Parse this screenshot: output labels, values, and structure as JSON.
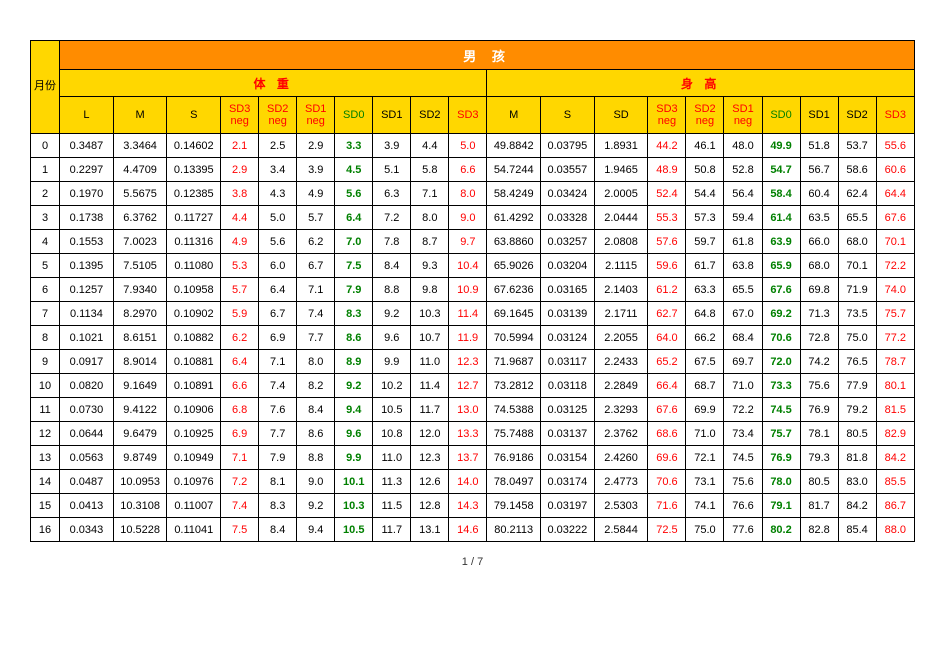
{
  "title": "男 孩",
  "month_header": "月份",
  "groups": [
    "体 重",
    "身 高"
  ],
  "columns_weight": [
    {
      "key": "L",
      "label": "L",
      "cls": "h-black"
    },
    {
      "key": "M",
      "label": "M",
      "cls": "h-black"
    },
    {
      "key": "S",
      "label": "S",
      "cls": "h-black"
    },
    {
      "key": "SD3neg",
      "label": "SD3\nneg",
      "cls": "h-red"
    },
    {
      "key": "SD2neg",
      "label": "SD2\nneg",
      "cls": "h-red"
    },
    {
      "key": "SD1neg",
      "label": "SD1\nneg",
      "cls": "h-red"
    },
    {
      "key": "SD0",
      "label": "SD0",
      "cls": "h-green"
    },
    {
      "key": "SD1",
      "label": "SD1",
      "cls": "h-black"
    },
    {
      "key": "SD2",
      "label": "SD2",
      "cls": "h-black"
    },
    {
      "key": "SD3",
      "label": "SD3",
      "cls": "h-red"
    }
  ],
  "columns_height": [
    {
      "key": "M",
      "label": "M",
      "cls": "h-black"
    },
    {
      "key": "S",
      "label": "S",
      "cls": "h-black"
    },
    {
      "key": "SD",
      "label": "SD",
      "cls": "h-black"
    },
    {
      "key": "SD3neg",
      "label": "SD3\nneg",
      "cls": "h-red"
    },
    {
      "key": "SD2neg",
      "label": "SD2\nneg",
      "cls": "h-red"
    },
    {
      "key": "SD1neg",
      "label": "SD1\nneg",
      "cls": "h-red"
    },
    {
      "key": "SD0",
      "label": "SD0",
      "cls": "h-green"
    },
    {
      "key": "SD1",
      "label": "SD1",
      "cls": "h-black"
    },
    {
      "key": "SD2",
      "label": "SD2",
      "cls": "h-black"
    },
    {
      "key": "SD3",
      "label": "SD3",
      "cls": "h-red"
    }
  ],
  "cell_classes": {
    "weight": [
      "c-black",
      "c-black",
      "c-black",
      "c-red",
      "c-black",
      "c-black",
      "c-green",
      "c-black",
      "c-black",
      "c-red"
    ],
    "height": [
      "c-black",
      "c-black",
      "c-black",
      "c-red",
      "c-black",
      "c-black",
      "c-green",
      "c-black",
      "c-black",
      "c-red"
    ]
  },
  "rows": [
    {
      "m": 0,
      "w": [
        "0.3487",
        "3.3464",
        "0.14602",
        "2.1",
        "2.5",
        "2.9",
        "3.3",
        "3.9",
        "4.4",
        "5.0"
      ],
      "h": [
        "49.8842",
        "0.03795",
        "1.8931",
        "44.2",
        "46.1",
        "48.0",
        "49.9",
        "51.8",
        "53.7",
        "55.6"
      ]
    },
    {
      "m": 1,
      "w": [
        "0.2297",
        "4.4709",
        "0.13395",
        "2.9",
        "3.4",
        "3.9",
        "4.5",
        "5.1",
        "5.8",
        "6.6"
      ],
      "h": [
        "54.7244",
        "0.03557",
        "1.9465",
        "48.9",
        "50.8",
        "52.8",
        "54.7",
        "56.7",
        "58.6",
        "60.6"
      ]
    },
    {
      "m": 2,
      "w": [
        "0.1970",
        "5.5675",
        "0.12385",
        "3.8",
        "4.3",
        "4.9",
        "5.6",
        "6.3",
        "7.1",
        "8.0"
      ],
      "h": [
        "58.4249",
        "0.03424",
        "2.0005",
        "52.4",
        "54.4",
        "56.4",
        "58.4",
        "60.4",
        "62.4",
        "64.4"
      ]
    },
    {
      "m": 3,
      "w": [
        "0.1738",
        "6.3762",
        "0.11727",
        "4.4",
        "5.0",
        "5.7",
        "6.4",
        "7.2",
        "8.0",
        "9.0"
      ],
      "h": [
        "61.4292",
        "0.03328",
        "2.0444",
        "55.3",
        "57.3",
        "59.4",
        "61.4",
        "63.5",
        "65.5",
        "67.6"
      ]
    },
    {
      "m": 4,
      "w": [
        "0.1553",
        "7.0023",
        "0.11316",
        "4.9",
        "5.6",
        "6.2",
        "7.0",
        "7.8",
        "8.7",
        "9.7"
      ],
      "h": [
        "63.8860",
        "0.03257",
        "2.0808",
        "57.6",
        "59.7",
        "61.8",
        "63.9",
        "66.0",
        "68.0",
        "70.1"
      ]
    },
    {
      "m": 5,
      "w": [
        "0.1395",
        "7.5105",
        "0.11080",
        "5.3",
        "6.0",
        "6.7",
        "7.5",
        "8.4",
        "9.3",
        "10.4"
      ],
      "h": [
        "65.9026",
        "0.03204",
        "2.1115",
        "59.6",
        "61.7",
        "63.8",
        "65.9",
        "68.0",
        "70.1",
        "72.2"
      ]
    },
    {
      "m": 6,
      "w": [
        "0.1257",
        "7.9340",
        "0.10958",
        "5.7",
        "6.4",
        "7.1",
        "7.9",
        "8.8",
        "9.8",
        "10.9"
      ],
      "h": [
        "67.6236",
        "0.03165",
        "2.1403",
        "61.2",
        "63.3",
        "65.5",
        "67.6",
        "69.8",
        "71.9",
        "74.0"
      ]
    },
    {
      "m": 7,
      "w": [
        "0.1134",
        "8.2970",
        "0.10902",
        "5.9",
        "6.7",
        "7.4",
        "8.3",
        "9.2",
        "10.3",
        "11.4"
      ],
      "h": [
        "69.1645",
        "0.03139",
        "2.1711",
        "62.7",
        "64.8",
        "67.0",
        "69.2",
        "71.3",
        "73.5",
        "75.7"
      ]
    },
    {
      "m": 8,
      "w": [
        "0.1021",
        "8.6151",
        "0.10882",
        "6.2",
        "6.9",
        "7.7",
        "8.6",
        "9.6",
        "10.7",
        "11.9"
      ],
      "h": [
        "70.5994",
        "0.03124",
        "2.2055",
        "64.0",
        "66.2",
        "68.4",
        "70.6",
        "72.8",
        "75.0",
        "77.2"
      ]
    },
    {
      "m": 9,
      "w": [
        "0.0917",
        "8.9014",
        "0.10881",
        "6.4",
        "7.1",
        "8.0",
        "8.9",
        "9.9",
        "11.0",
        "12.3"
      ],
      "h": [
        "71.9687",
        "0.03117",
        "2.2433",
        "65.2",
        "67.5",
        "69.7",
        "72.0",
        "74.2",
        "76.5",
        "78.7"
      ]
    },
    {
      "m": 10,
      "w": [
        "0.0820",
        "9.1649",
        "0.10891",
        "6.6",
        "7.4",
        "8.2",
        "9.2",
        "10.2",
        "11.4",
        "12.7"
      ],
      "h": [
        "73.2812",
        "0.03118",
        "2.2849",
        "66.4",
        "68.7",
        "71.0",
        "73.3",
        "75.6",
        "77.9",
        "80.1"
      ]
    },
    {
      "m": 11,
      "w": [
        "0.0730",
        "9.4122",
        "0.10906",
        "6.8",
        "7.6",
        "8.4",
        "9.4",
        "10.5",
        "11.7",
        "13.0"
      ],
      "h": [
        "74.5388",
        "0.03125",
        "2.3293",
        "67.6",
        "69.9",
        "72.2",
        "74.5",
        "76.9",
        "79.2",
        "81.5"
      ]
    },
    {
      "m": 12,
      "w": [
        "0.0644",
        "9.6479",
        "0.10925",
        "6.9",
        "7.7",
        "8.6",
        "9.6",
        "10.8",
        "12.0",
        "13.3"
      ],
      "h": [
        "75.7488",
        "0.03137",
        "2.3762",
        "68.6",
        "71.0",
        "73.4",
        "75.7",
        "78.1",
        "80.5",
        "82.9"
      ]
    },
    {
      "m": 13,
      "w": [
        "0.0563",
        "9.8749",
        "0.10949",
        "7.1",
        "7.9",
        "8.8",
        "9.9",
        "11.0",
        "12.3",
        "13.7"
      ],
      "h": [
        "76.9186",
        "0.03154",
        "2.4260",
        "69.6",
        "72.1",
        "74.5",
        "76.9",
        "79.3",
        "81.8",
        "84.2"
      ]
    },
    {
      "m": 14,
      "w": [
        "0.0487",
        "10.0953",
        "0.10976",
        "7.2",
        "8.1",
        "9.0",
        "10.1",
        "11.3",
        "12.6",
        "14.0"
      ],
      "h": [
        "78.0497",
        "0.03174",
        "2.4773",
        "70.6",
        "73.1",
        "75.6",
        "78.0",
        "80.5",
        "83.0",
        "85.5"
      ]
    },
    {
      "m": 15,
      "w": [
        "0.0413",
        "10.3108",
        "0.11007",
        "7.4",
        "8.3",
        "9.2",
        "10.3",
        "11.5",
        "12.8",
        "14.3"
      ],
      "h": [
        "79.1458",
        "0.03197",
        "2.5303",
        "71.6",
        "74.1",
        "76.6",
        "79.1",
        "81.7",
        "84.2",
        "86.7"
      ]
    },
    {
      "m": 16,
      "w": [
        "0.0343",
        "10.5228",
        "0.11041",
        "7.5",
        "8.4",
        "9.4",
        "10.5",
        "11.7",
        "13.1",
        "14.6"
      ],
      "h": [
        "80.2113",
        "0.03222",
        "2.5844",
        "72.5",
        "75.0",
        "77.6",
        "80.2",
        "82.8",
        "85.4",
        "88.0"
      ]
    }
  ],
  "pager": {
    "current": "1",
    "sep": "/",
    "total": "7"
  }
}
